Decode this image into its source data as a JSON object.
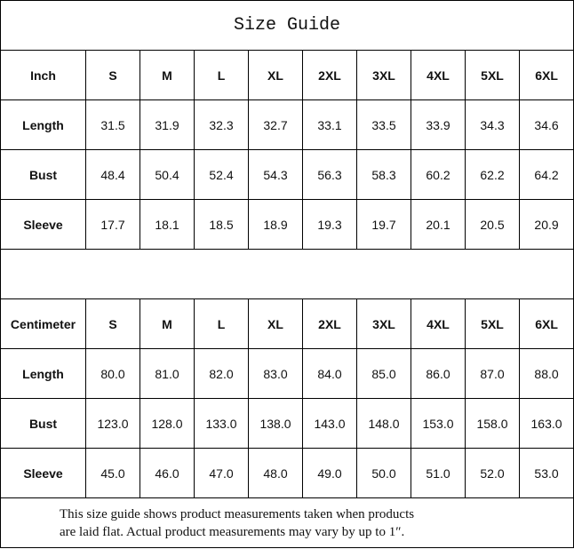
{
  "title": "Size Guide",
  "sizes": [
    "S",
    "M",
    "L",
    "XL",
    "2XL",
    "3XL",
    "4XL",
    "5XL",
    "6XL"
  ],
  "tables": [
    {
      "unit": "Inch",
      "rows": [
        {
          "label": "Length",
          "values": [
            "31.5",
            "31.9",
            "32.3",
            "32.7",
            "33.1",
            "33.5",
            "33.9",
            "34.3",
            "34.6"
          ]
        },
        {
          "label": "Bust",
          "values": [
            "48.4",
            "50.4",
            "52.4",
            "54.3",
            "56.3",
            "58.3",
            "60.2",
            "62.2",
            "64.2"
          ]
        },
        {
          "label": "Sleeve",
          "values": [
            "17.7",
            "18.1",
            "18.5",
            "18.9",
            "19.3",
            "19.7",
            "20.1",
            "20.5",
            "20.9"
          ]
        }
      ]
    },
    {
      "unit": "Centimeter",
      "rows": [
        {
          "label": "Length",
          "values": [
            "80.0",
            "81.0",
            "82.0",
            "83.0",
            "84.0",
            "85.0",
            "86.0",
            "87.0",
            "88.0"
          ]
        },
        {
          "label": "Bust",
          "values": [
            "123.0",
            "128.0",
            "133.0",
            "138.0",
            "143.0",
            "148.0",
            "153.0",
            "158.0",
            "163.0"
          ]
        },
        {
          "label": "Sleeve",
          "values": [
            "45.0",
            "46.0",
            "47.0",
            "48.0",
            "49.0",
            "50.0",
            "51.0",
            "52.0",
            "53.0"
          ]
        }
      ]
    }
  ],
  "note": {
    "line1": "This size guide shows product measurements taken when products",
    "line2": "are laid flat. Actual product measurements may vary by up to 1″."
  }
}
